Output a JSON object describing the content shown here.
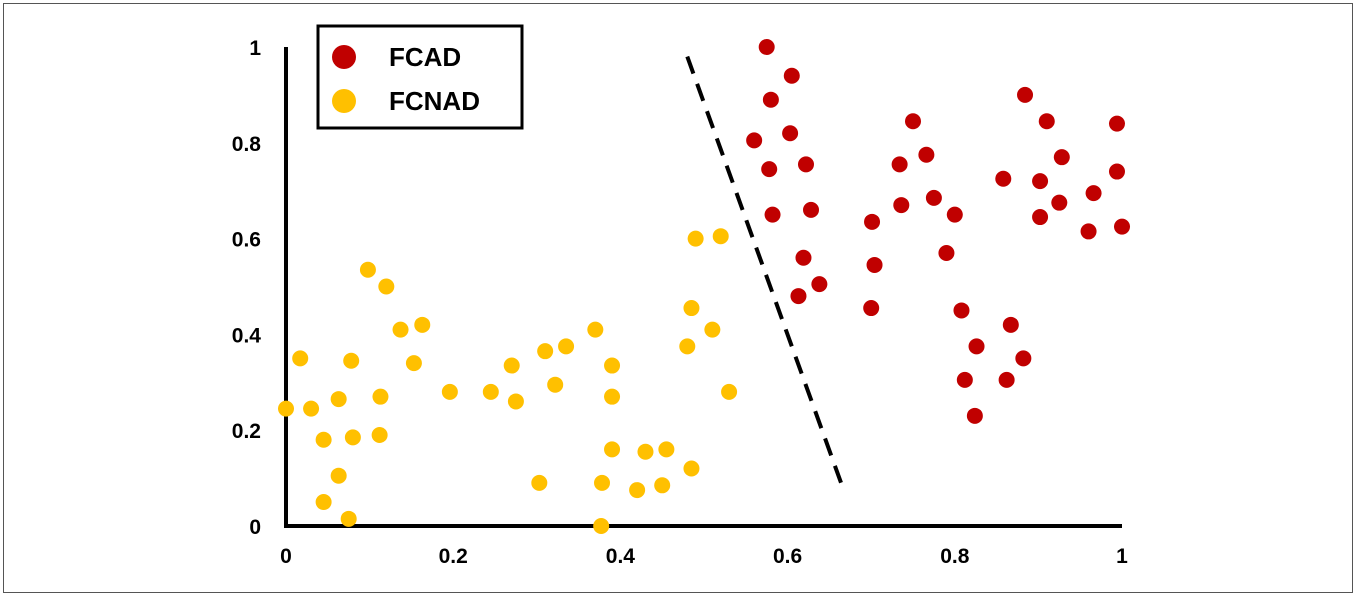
{
  "chart_data": {
    "type": "scatter",
    "xlim": [
      0,
      1
    ],
    "ylim": [
      0,
      1
    ],
    "x_ticks": [
      "0",
      "0.2",
      "0.4",
      "0.6",
      "0.8",
      "1"
    ],
    "y_ticks": [
      "0",
      "0.2",
      "0.4",
      "0.6",
      "0.8",
      "1"
    ],
    "grid": false,
    "legend_position": "top-left",
    "series": [
      {
        "name": "FCAD",
        "color": "#c00000",
        "points": [
          [
            0.575,
            1.0
          ],
          [
            0.605,
            0.94
          ],
          [
            0.58,
            0.89
          ],
          [
            0.56,
            0.805
          ],
          [
            0.603,
            0.82
          ],
          [
            0.578,
            0.745
          ],
          [
            0.622,
            0.755
          ],
          [
            0.582,
            0.65
          ],
          [
            0.628,
            0.66
          ],
          [
            0.619,
            0.56
          ],
          [
            0.613,
            0.48
          ],
          [
            0.638,
            0.505
          ],
          [
            0.701,
            0.635
          ],
          [
            0.704,
            0.545
          ],
          [
            0.7,
            0.455
          ],
          [
            0.734,
            0.755
          ],
          [
            0.75,
            0.845
          ],
          [
            0.736,
            0.67
          ],
          [
            0.766,
            0.775
          ],
          [
            0.775,
            0.685
          ],
          [
            0.79,
            0.57
          ],
          [
            0.8,
            0.65
          ],
          [
            0.808,
            0.45
          ],
          [
            0.812,
            0.305
          ],
          [
            0.826,
            0.375
          ],
          [
            0.824,
            0.23
          ],
          [
            0.858,
            0.725
          ],
          [
            0.862,
            0.305
          ],
          [
            0.867,
            0.42
          ],
          [
            0.882,
            0.35
          ],
          [
            0.884,
            0.9
          ],
          [
            0.902,
            0.72
          ],
          [
            0.902,
            0.645
          ],
          [
            0.91,
            0.845
          ],
          [
            0.925,
            0.675
          ],
          [
            0.928,
            0.77
          ],
          [
            0.96,
            0.615
          ],
          [
            0.966,
            0.695
          ],
          [
            0.994,
            0.84
          ],
          [
            0.994,
            0.74
          ],
          [
            1.0,
            0.625
          ]
        ]
      },
      {
        "name": "FCNAD",
        "color": "#ffc000",
        "points": [
          [
            0.0,
            0.245
          ],
          [
            0.017,
            0.35
          ],
          [
            0.03,
            0.245
          ],
          [
            0.045,
            0.18
          ],
          [
            0.045,
            0.05
          ],
          [
            0.063,
            0.265
          ],
          [
            0.063,
            0.105
          ],
          [
            0.078,
            0.345
          ],
          [
            0.08,
            0.185
          ],
          [
            0.075,
            0.015
          ],
          [
            0.098,
            0.535
          ],
          [
            0.112,
            0.19
          ],
          [
            0.113,
            0.27
          ],
          [
            0.12,
            0.5
          ],
          [
            0.137,
            0.41
          ],
          [
            0.153,
            0.34
          ],
          [
            0.163,
            0.42
          ],
          [
            0.196,
            0.28
          ],
          [
            0.245,
            0.28
          ],
          [
            0.27,
            0.335
          ],
          [
            0.275,
            0.26
          ],
          [
            0.303,
            0.09
          ],
          [
            0.31,
            0.365
          ],
          [
            0.322,
            0.295
          ],
          [
            0.335,
            0.375
          ],
          [
            0.37,
            0.41
          ],
          [
            0.378,
            0.09
          ],
          [
            0.377,
            0.0
          ],
          [
            0.39,
            0.335
          ],
          [
            0.39,
            0.27
          ],
          [
            0.39,
            0.16
          ],
          [
            0.43,
            0.155
          ],
          [
            0.42,
            0.075
          ],
          [
            0.45,
            0.085
          ],
          [
            0.455,
            0.16
          ],
          [
            0.48,
            0.375
          ],
          [
            0.485,
            0.455
          ],
          [
            0.485,
            0.12
          ],
          [
            0.49,
            0.6
          ],
          [
            0.51,
            0.41
          ],
          [
            0.52,
            0.605
          ],
          [
            0.53,
            0.28
          ]
        ]
      }
    ],
    "annotations": [
      {
        "type": "dashed-line",
        "from": [
          0.48,
          0.98
        ],
        "to": [
          0.665,
          0.085
        ],
        "color": "#000000"
      }
    ]
  }
}
